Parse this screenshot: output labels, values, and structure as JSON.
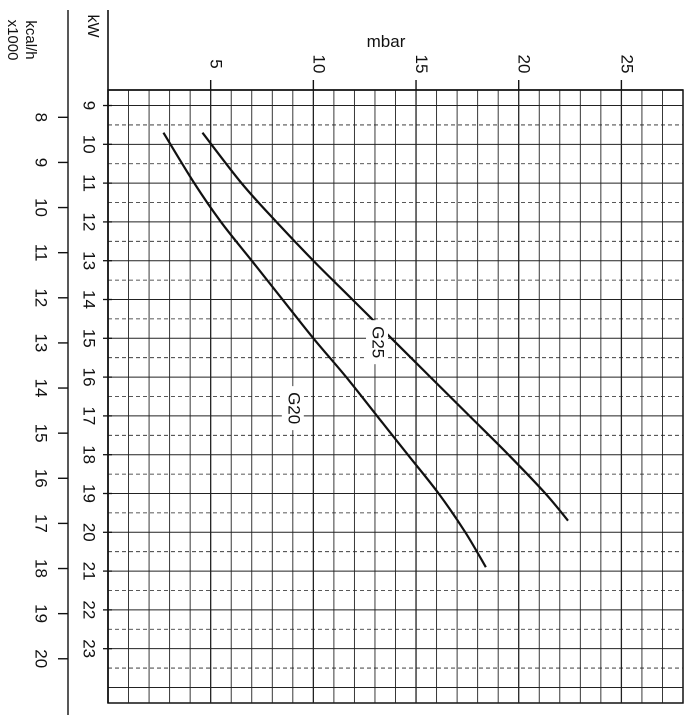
{
  "chart_data": {
    "type": "line",
    "title": "",
    "xlabel": "mbar",
    "ylabel_kw": "kW",
    "ylabel_kcal": "kcal/h\nx1000",
    "x_ticks": [
      "5",
      "10",
      "15",
      "20",
      "25"
    ],
    "kw_ticks": [
      "9",
      "10",
      "11",
      "12",
      "13",
      "14",
      "15",
      "16",
      "17",
      "18",
      "19",
      "20",
      "21",
      "22",
      "23"
    ],
    "kcal_ticks": [
      "8",
      "9",
      "10",
      "11",
      "12",
      "13",
      "14",
      "15",
      "16",
      "17",
      "18",
      "19",
      "20"
    ],
    "xlim": [
      0,
      28
    ],
    "ylim_kw": [
      8.6,
      24.4
    ],
    "grid": true,
    "series": [
      {
        "name": "G20",
        "x": [
          2.7,
          4.2,
          5.5,
          7.0,
          8.5,
          10.0,
          11.6,
          13.1,
          14.6,
          16.1,
          17.4,
          18.4
        ],
        "y": [
          9.7,
          11.0,
          12.0,
          13.0,
          14.0,
          15.0,
          16.0,
          17.0,
          18.0,
          19.0,
          20.0,
          20.9
        ],
        "label_at": [
          9.0,
          16.8
        ]
      },
      {
        "name": "G25",
        "x": [
          4.6,
          6.5,
          8.2,
          10.0,
          11.9,
          13.8,
          15.7,
          17.6,
          19.5,
          21.3,
          22.4
        ],
        "y": [
          9.7,
          11.0,
          12.0,
          13.0,
          14.0,
          15.0,
          16.0,
          17.0,
          18.0,
          19.0,
          19.7
        ],
        "label_at": [
          13.1,
          15.1
        ]
      }
    ]
  }
}
